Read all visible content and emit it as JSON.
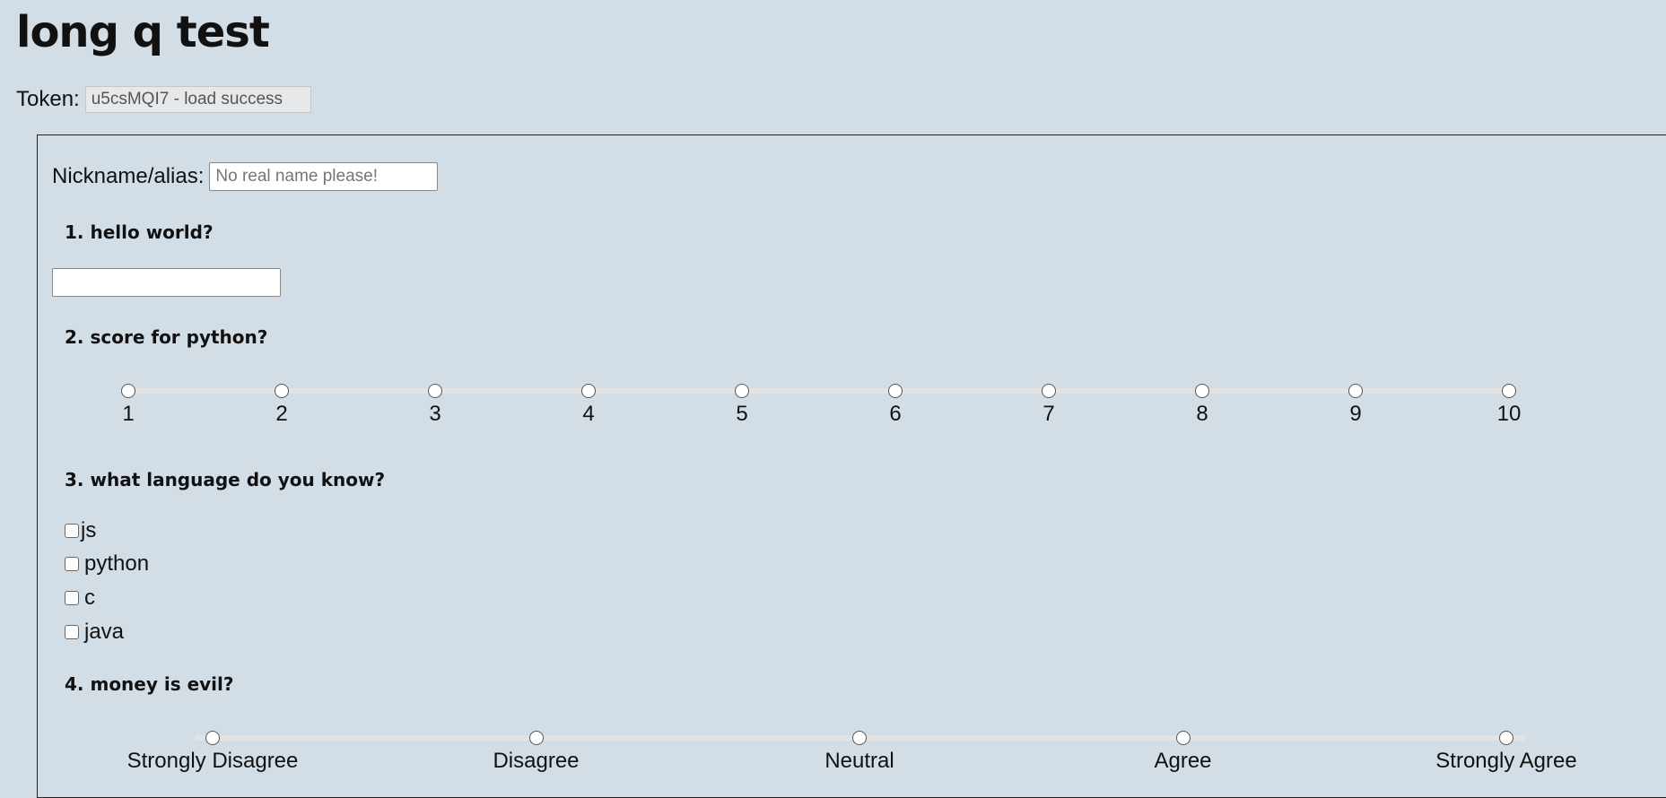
{
  "page": {
    "title": "long q test"
  },
  "token": {
    "label": "Token:",
    "value": "u5csMQI7 - load success"
  },
  "nickname": {
    "label": "Nickname/alias:",
    "placeholder": "No real name please!"
  },
  "questions": {
    "q1": {
      "label": "1. hello world?",
      "value": ""
    },
    "q2": {
      "label": "2. score for python?",
      "options": [
        "1",
        "2",
        "3",
        "4",
        "5",
        "6",
        "7",
        "8",
        "9",
        "10"
      ],
      "selected": null
    },
    "q3": {
      "label": "3. what language do you know?",
      "options": [
        "js",
        "python",
        "c",
        "java"
      ],
      "checked": []
    },
    "q4": {
      "label": "4. money is evil?",
      "options": [
        "Strongly Disagree",
        "Disagree",
        "Neutral",
        "Agree",
        "Strongly Agree"
      ],
      "selected": null
    }
  }
}
